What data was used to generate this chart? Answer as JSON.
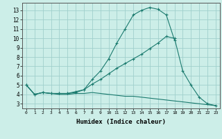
{
  "xlabel": "Humidex (Indice chaleur)",
  "background_color": "#cceee8",
  "grid_color": "#a0d0cc",
  "line_color": "#1a7a6e",
  "xlim": [
    -0.5,
    23.5
  ],
  "ylim": [
    2.5,
    13.8
  ],
  "xtick_labels": [
    "0",
    "1",
    "2",
    "3",
    "4",
    "5",
    "6",
    "7",
    "8",
    "9",
    "10",
    "11",
    "12",
    "13",
    "14",
    "15",
    "16",
    "17",
    "18",
    "19",
    "20",
    "21",
    "22",
    "23"
  ],
  "xtick_positions": [
    0,
    1,
    2,
    3,
    4,
    5,
    6,
    7,
    8,
    9,
    10,
    11,
    12,
    13,
    14,
    15,
    16,
    17,
    18,
    19,
    20,
    21,
    22,
    23
  ],
  "ytick_positions": [
    3,
    4,
    5,
    6,
    7,
    8,
    9,
    10,
    11,
    12,
    13
  ],
  "series1_x": [
    0,
    1,
    2,
    3,
    4,
    5,
    6,
    7,
    8,
    9,
    10,
    11,
    12,
    13,
    14,
    15,
    16,
    17,
    18
  ],
  "series1_y": [
    5.0,
    4.0,
    4.2,
    4.1,
    4.1,
    4.1,
    4.2,
    4.5,
    5.6,
    6.5,
    7.8,
    9.5,
    11.0,
    12.5,
    13.0,
    13.3,
    13.1,
    12.5,
    9.8
  ],
  "series2_x": [
    0,
    1,
    2,
    3,
    4,
    5,
    6,
    7,
    8,
    9,
    10,
    11,
    12,
    13,
    14,
    15,
    16,
    17,
    18,
    19,
    20,
    21,
    22,
    23
  ],
  "series2_y": [
    5.0,
    4.0,
    4.2,
    4.1,
    4.1,
    4.1,
    4.3,
    4.5,
    5.1,
    5.6,
    6.2,
    6.8,
    7.3,
    7.8,
    8.3,
    8.9,
    9.5,
    10.2,
    10.0,
    6.5,
    5.0,
    3.7,
    3.0,
    2.8
  ],
  "series3_x": [
    0,
    1,
    2,
    3,
    4,
    5,
    6,
    7,
    8,
    9,
    10,
    11,
    12,
    13,
    14,
    15,
    16,
    17,
    18,
    19,
    20,
    21,
    22,
    23
  ],
  "series3_y": [
    5.0,
    4.0,
    4.2,
    4.1,
    4.0,
    4.0,
    4.1,
    4.1,
    4.2,
    4.1,
    4.0,
    3.9,
    3.8,
    3.8,
    3.7,
    3.6,
    3.5,
    3.4,
    3.3,
    3.2,
    3.1,
    3.0,
    2.9,
    2.8
  ]
}
